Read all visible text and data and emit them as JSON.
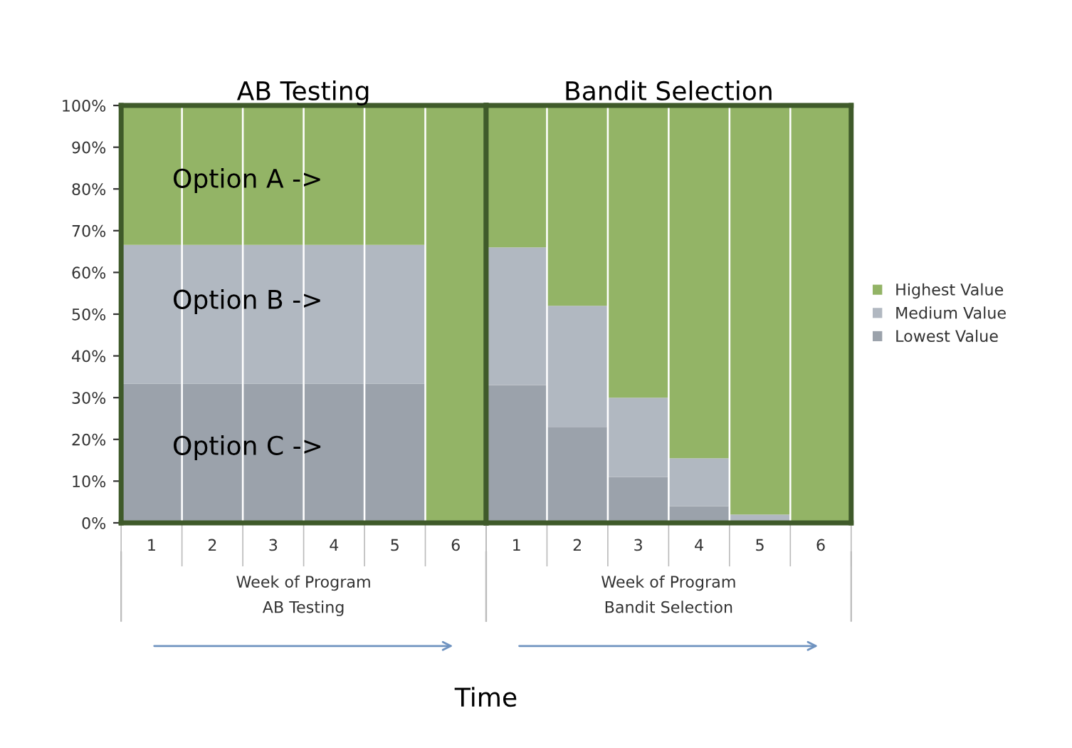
{
  "chart_data": [
    {
      "type": "bar",
      "title": "AB Testing",
      "xlabel": "Week of Program",
      "stacked": true,
      "legend": false,
      "tick_labels": "xy",
      "categories": [
        "1",
        "2",
        "3",
        "4",
        "5",
        "6"
      ],
      "ylim": [
        0,
        100
      ],
      "yticks": [
        {
          "value": 0,
          "label": "0%"
        },
        {
          "value": 10,
          "label": "10%"
        },
        {
          "value": 20,
          "label": "20%"
        },
        {
          "value": 30,
          "label": "30%"
        },
        {
          "value": 40,
          "label": "40%"
        },
        {
          "value": 50,
          "label": "50%"
        },
        {
          "value": 60,
          "label": "60%"
        },
        {
          "value": 70,
          "label": "70%"
        },
        {
          "value": 80,
          "label": "80%"
        },
        {
          "value": 90,
          "label": "90%"
        },
        {
          "value": 100,
          "label": "100%"
        }
      ],
      "series": [
        {
          "color": "#9ba2ab",
          "values": [
            33.3,
            33.3,
            33.3,
            33.3,
            33.3,
            0
          ]
        },
        {
          "color": "#b1b8c1",
          "values": [
            33.3,
            33.3,
            33.3,
            33.3,
            33.3,
            0
          ]
        },
        {
          "color": "#93b466",
          "values": [
            33.4,
            33.4,
            33.4,
            33.4,
            33.4,
            100
          ]
        }
      ],
      "annotations": [
        "AB Testing",
        "Option A ->",
        "Option B ->",
        "Option C ->",
        "Time"
      ]
    },
    {
      "type": "bar",
      "title": "Bandit Selection",
      "xlabel": "Week of Program",
      "stacked": true,
      "legend": "right",
      "tick_labels": "x",
      "categories": [
        "1",
        "2",
        "3",
        "4",
        "5",
        "6"
      ],
      "ylim": [
        0,
        100
      ],
      "series": [
        {
          "name": "Lowest Value",
          "color": "#9ba2ab",
          "values": [
            33,
            23,
            11,
            4,
            0,
            0
          ]
        },
        {
          "name": "Medium Value",
          "color": "#b1b8c1",
          "values": [
            33,
            29,
            19,
            11.5,
            2,
            0
          ]
        },
        {
          "name": "Highest Value",
          "color": "#93b466",
          "values": [
            34,
            48,
            70,
            84.5,
            98,
            100
          ]
        }
      ],
      "annotations": [
        "Bandit Selection"
      ]
    }
  ]
}
